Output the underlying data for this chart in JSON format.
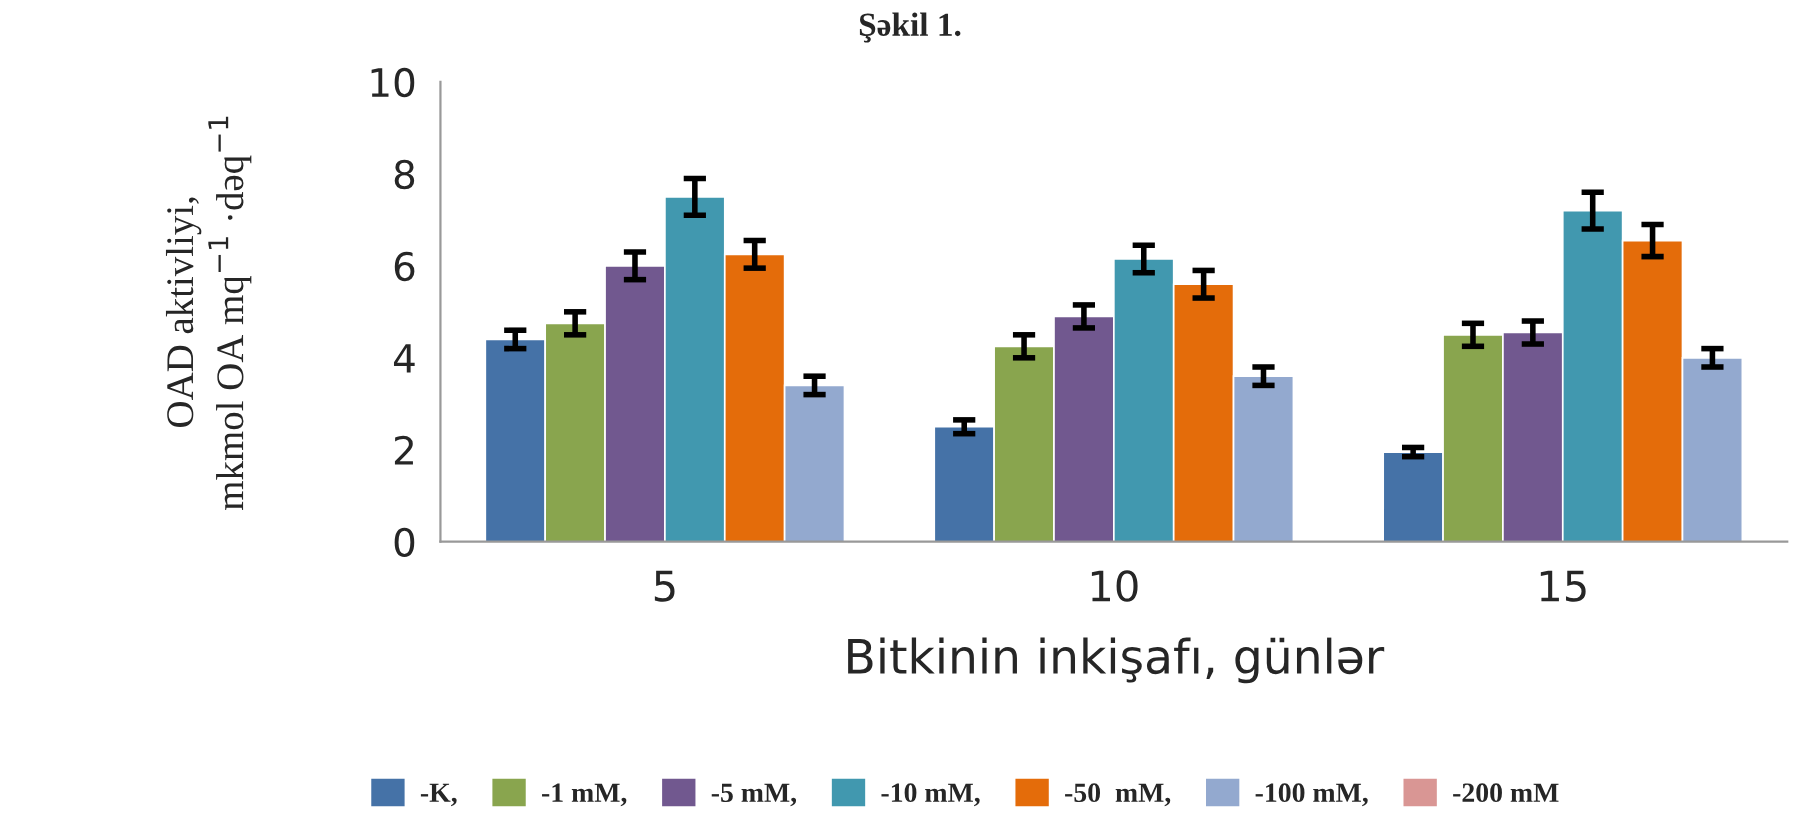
{
  "chart_data": {
    "type": "bar",
    "title": "Şəkil 1.",
    "xlabel": "Bitkinin inkişafı, günlər",
    "ylabel": "OAD aktivliyi,\nmkmol OA mq$^{−1}$ ·dəq$^{−1}$",
    "categories": [
      "5",
      "10",
      "15"
    ],
    "series": [
      {
        "name": "-K,",
        "color": "#4572a7",
        "values": [
          4.4,
          2.5,
          1.95
        ],
        "errors": [
          0.2,
          0.15,
          0.1
        ]
      },
      {
        "name": "-1 mM,",
        "color": "#89a54e",
        "values": [
          4.75,
          4.25,
          4.5
        ],
        "errors": [
          0.25,
          0.25,
          0.25
        ]
      },
      {
        "name": "-5 mM,",
        "color": "#71588f",
        "values": [
          6.0,
          4.9,
          4.55
        ],
        "errors": [
          0.3,
          0.25,
          0.25
        ]
      },
      {
        "name": "-10 mM,",
        "color": "#4198af",
        "values": [
          7.5,
          6.15,
          7.2
        ],
        "errors": [
          0.4,
          0.3,
          0.4
        ]
      },
      {
        "name": "-50  mM,",
        "color": "#e46c0a",
        "values": [
          6.25,
          5.6,
          6.55
        ],
        "errors": [
          0.3,
          0.3,
          0.35
        ]
      },
      {
        "name": "-100 mM,",
        "color": "#93a9cf",
        "values": [
          3.4,
          3.6,
          4.0
        ],
        "errors": [
          0.2,
          0.2,
          0.2
        ]
      },
      {
        "name": "-200 mM",
        "color": "#d99694",
        "values": [
          null,
          null,
          null
        ]
      }
    ],
    "ylim": [
      0,
      10
    ],
    "yticks": [
      0,
      2,
      4,
      6,
      8,
      10
    ],
    "grid": false,
    "legend": "bottom"
  }
}
